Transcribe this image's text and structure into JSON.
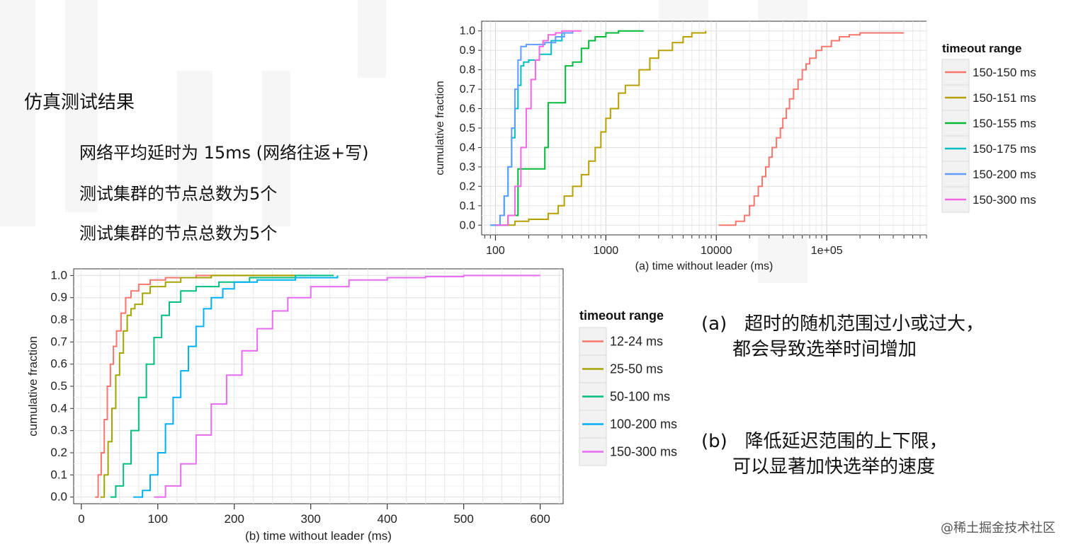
{
  "slide": {
    "title": "仿真测试结果",
    "bullets": [
      "网络平均延时为 15ms (网络往返+写)",
      "测试集群的节点总数为5个",
      "测试集群的节点总数为5个"
    ],
    "note_a_tag": "(a)",
    "note_a_line1": "超时的随机范围过小或过大，",
    "note_a_line2": "都会导致选举时间增加",
    "note_b_tag": "(b)",
    "note_b_line1": "降低延迟范围的上下限，",
    "note_b_line2": "可以显著加快选举的速度",
    "watermark": "@稀土掘金技术社区"
  },
  "chart_data": [
    {
      "id": "a",
      "type": "line",
      "step": true,
      "xscale": "log10",
      "xlim": [
        75,
        800000
      ],
      "ylim": [
        -0.05,
        1.05
      ],
      "xlabel": "(a) time without leader (ms)",
      "ylabel": "cumulative fraction",
      "xticks": [
        100,
        1000,
        10000,
        100000
      ],
      "xtick_labels": [
        "100",
        "1000",
        "10000",
        "1e+05"
      ],
      "yticks": [
        0,
        0.1,
        0.2,
        0.3,
        0.4,
        0.5,
        0.6,
        0.7,
        0.8,
        0.9,
        1.0
      ],
      "ytick_labels": [
        "0.0",
        "0.1",
        "0.2",
        "0.3",
        "0.4",
        "0.5",
        "0.6",
        "0.7",
        "0.8",
        "0.9",
        "1.0"
      ],
      "grid": true,
      "legend_title": "timeout range",
      "legend_position": "right",
      "series": [
        {
          "name": "150-150 ms",
          "color": "#f8766d",
          "x": [
            10500,
            15000,
            18000,
            20000,
            22000,
            24000,
            26000,
            28000,
            30000,
            32000,
            35000,
            38000,
            40000,
            43000,
            46000,
            50000,
            55000,
            60000,
            65000,
            70000,
            80000,
            90000,
            110000,
            130000,
            160000,
            200000,
            500000
          ],
          "y": [
            0,
            0.02,
            0.05,
            0.1,
            0.15,
            0.2,
            0.25,
            0.3,
            0.35,
            0.4,
            0.45,
            0.5,
            0.55,
            0.6,
            0.65,
            0.7,
            0.75,
            0.8,
            0.83,
            0.86,
            0.9,
            0.92,
            0.95,
            0.97,
            0.98,
            0.99,
            0.99
          ]
        },
        {
          "name": "150-151 ms",
          "color": "#b79f00",
          "x": [
            100,
            150,
            200,
            300,
            370,
            420,
            500,
            600,
            700,
            800,
            900,
            1000,
            1100,
            1300,
            1500,
            2000,
            2500,
            3000,
            4000,
            5000,
            6000,
            8000
          ],
          "y": [
            0,
            0.02,
            0.03,
            0.06,
            0.1,
            0.15,
            0.2,
            0.26,
            0.33,
            0.4,
            0.48,
            0.55,
            0.6,
            0.68,
            0.72,
            0.8,
            0.86,
            0.9,
            0.94,
            0.97,
            0.99,
            1.0
          ]
        },
        {
          "name": "150-155 ms",
          "color": "#00ba38",
          "x": [
            100,
            130,
            160,
            200,
            250,
            280,
            300,
            380,
            430,
            500,
            600,
            700,
            800,
            1000,
            1300,
            2200
          ],
          "y": [
            0,
            0.05,
            0.29,
            0.29,
            0.29,
            0.4,
            0.63,
            0.63,
            0.82,
            0.84,
            0.91,
            0.95,
            0.97,
            0.99,
            1.0,
            1.0
          ]
        },
        {
          "name": "150-175 ms",
          "color": "#00bfc4",
          "x": [
            90,
            110,
            120,
            130,
            140,
            150,
            160,
            170,
            180,
            200,
            250,
            320,
            400,
            500
          ],
          "y": [
            0,
            0.05,
            0.15,
            0.3,
            0.45,
            0.6,
            0.72,
            0.82,
            0.84,
            0.85,
            0.88,
            0.95,
            0.99,
            1.0
          ]
        },
        {
          "name": "150-200 ms",
          "color": "#619cff",
          "x": [
            90,
            110,
            120,
            130,
            140,
            150,
            160,
            170,
            190,
            220,
            280,
            350,
            420,
            500
          ],
          "y": [
            0,
            0.05,
            0.15,
            0.3,
            0.5,
            0.7,
            0.85,
            0.92,
            0.93,
            0.93,
            0.94,
            0.97,
            0.99,
            1.0
          ]
        },
        {
          "name": "150-300 ms",
          "color": "#f564e3",
          "x": [
            100,
            130,
            150,
            170,
            190,
            210,
            230,
            250,
            270,
            300,
            350,
            400,
            600
          ],
          "y": [
            0,
            0.05,
            0.2,
            0.4,
            0.6,
            0.75,
            0.85,
            0.92,
            0.95,
            0.98,
            0.99,
            1.0,
            1.0
          ]
        }
      ]
    },
    {
      "id": "b",
      "type": "line",
      "step": true,
      "xlim": [
        -10,
        630
      ],
      "ylim": [
        -0.03,
        1.03
      ],
      "xlabel": "(b) time without leader (ms)",
      "ylabel": "cumulative fraction",
      "xticks": [
        0,
        100,
        200,
        300,
        400,
        500,
        600
      ],
      "xtick_labels": [
        "0",
        "100",
        "200",
        "300",
        "400",
        "500",
        "600"
      ],
      "yticks": [
        0,
        0.1,
        0.2,
        0.3,
        0.4,
        0.5,
        0.6,
        0.7,
        0.8,
        0.9,
        1.0
      ],
      "ytick_labels": [
        "0.0",
        "0.1",
        "0.2",
        "0.3",
        "0.4",
        "0.5",
        "0.6",
        "0.7",
        "0.8",
        "0.9",
        "1.0"
      ],
      "grid": true,
      "legend_title": "timeout range",
      "legend_position": "right",
      "series": [
        {
          "name": "12-24 ms",
          "color": "#f8766d",
          "x": [
            18,
            22,
            26,
            30,
            34,
            38,
            42,
            46,
            52,
            58,
            65,
            75,
            90,
            110,
            150,
            280
          ],
          "y": [
            0,
            0.1,
            0.2,
            0.35,
            0.5,
            0.6,
            0.68,
            0.75,
            0.83,
            0.9,
            0.93,
            0.96,
            0.98,
            0.99,
            1.0,
            1.0
          ]
        },
        {
          "name": "25-50 ms",
          "color": "#a3a500",
          "x": [
            25,
            30,
            35,
            40,
            45,
            50,
            55,
            60,
            65,
            70,
            80,
            90,
            110,
            130,
            170,
            280
          ],
          "y": [
            0,
            0.1,
            0.25,
            0.4,
            0.55,
            0.65,
            0.75,
            0.82,
            0.85,
            0.87,
            0.92,
            0.95,
            0.97,
            0.99,
            1.0,
            1.0
          ]
        },
        {
          "name": "50-100 ms",
          "color": "#00bf7d",
          "x": [
            38,
            45,
            55,
            65,
            75,
            85,
            95,
            105,
            115,
            130,
            150,
            180,
            220,
            280,
            330
          ],
          "y": [
            0,
            0.05,
            0.15,
            0.3,
            0.45,
            0.6,
            0.72,
            0.82,
            0.88,
            0.93,
            0.95,
            0.97,
            0.99,
            1.0,
            1.0
          ]
        },
        {
          "name": "100-200 ms",
          "color": "#00b0f6",
          "x": [
            68,
            80,
            90,
            100,
            110,
            120,
            130,
            140,
            150,
            160,
            170,
            185,
            200,
            230,
            280,
            335
          ],
          "y": [
            0,
            0.03,
            0.1,
            0.2,
            0.33,
            0.45,
            0.57,
            0.68,
            0.77,
            0.85,
            0.9,
            0.94,
            0.97,
            0.98,
            0.99,
            1.0
          ]
        },
        {
          "name": "150-300 ms",
          "color": "#e76bf3",
          "x": [
            95,
            110,
            130,
            150,
            170,
            190,
            210,
            230,
            250,
            270,
            300,
            350,
            400,
            450,
            500,
            600
          ],
          "y": [
            0,
            0.05,
            0.15,
            0.28,
            0.42,
            0.55,
            0.66,
            0.76,
            0.84,
            0.9,
            0.95,
            0.98,
            0.99,
            0.995,
            1.0,
            1.0
          ]
        }
      ]
    }
  ]
}
